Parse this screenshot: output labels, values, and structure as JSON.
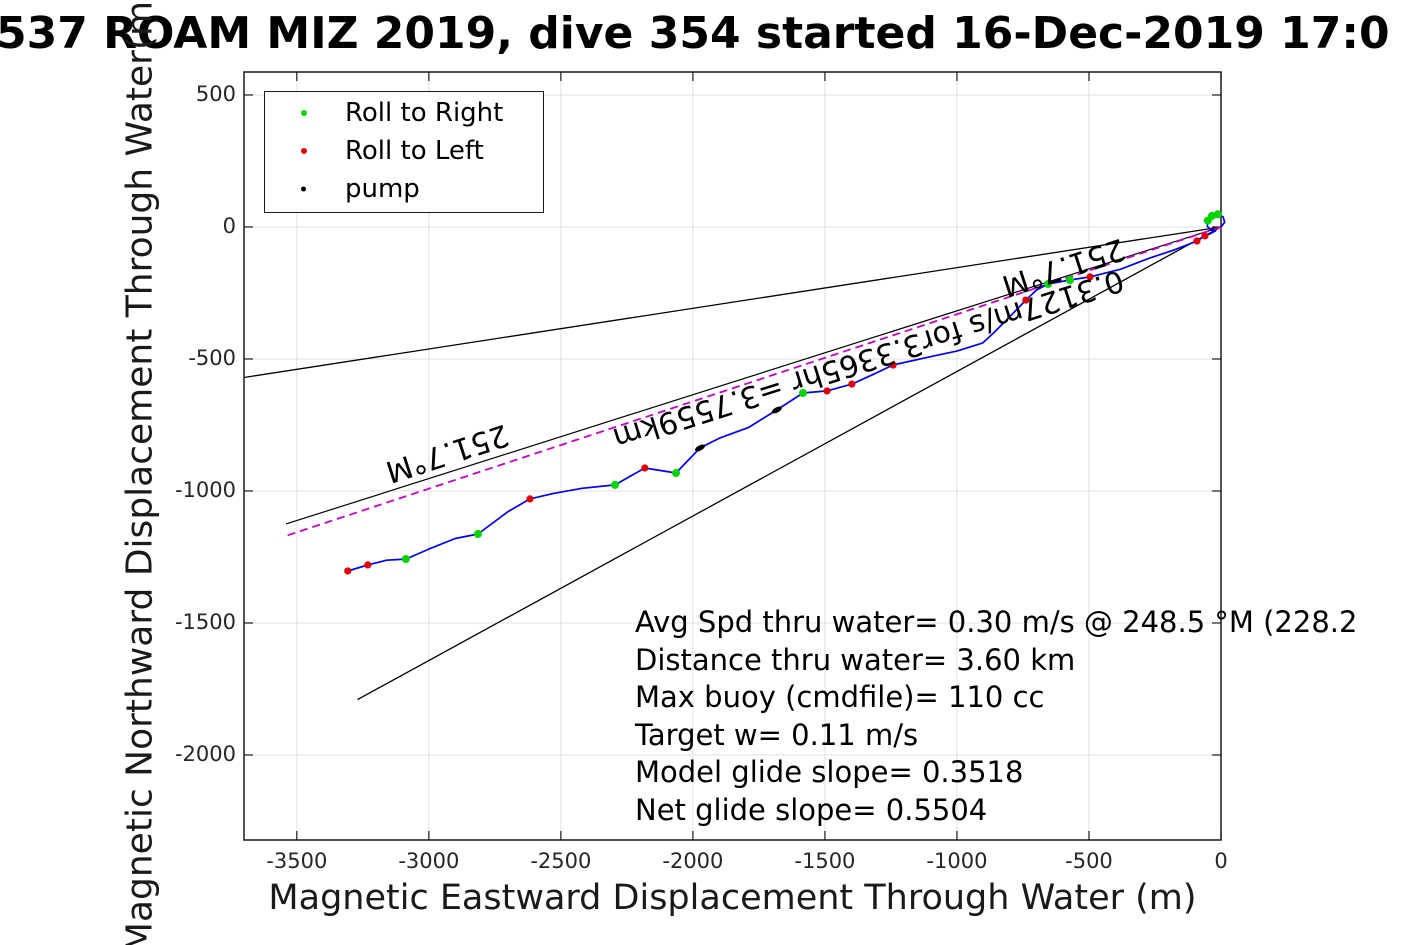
{
  "title": "537 ROAM MIZ 2019, dive 354 started 16-Dec-2019 17:0",
  "axis": {
    "xlabel": "Magnetic Eastward Displacement Through Water (m)",
    "ylabel": "Magnetic Northward Displacement Through Water(m)",
    "xticks": [
      -3500,
      -3000,
      -2500,
      -2000,
      -1500,
      -1000,
      -500,
      0
    ],
    "yticks": [
      500,
      0,
      -500,
      -1000,
      -1500,
      -2000
    ],
    "xlim": [
      -3700,
      0
    ],
    "ylim": [
      -2322,
      587
    ]
  },
  "legend": {
    "items": [
      {
        "label": "Roll to Right",
        "color": "#00d500",
        "dot": 6
      },
      {
        "label": "Roll to Left",
        "color": "#e00000",
        "dot": 6
      },
      {
        "label": "pump",
        "color": "#000000",
        "dot": 5
      }
    ]
  },
  "stats_lines": [
    "Avg Spd thru water=  0.30 m/s @ 248.5 °M (228.2",
    "Distance thru water=  3.60 km",
    "Max buoy (cmdfile)= 110 cc",
    "Target w= 0.11 m/s",
    "Model glide slope= 0.3518",
    "Net glide slope= 0.5504"
  ],
  "colors": {
    "track": "#0000f0",
    "bearing_line": "#c800c8",
    "corridor_line": "#000000",
    "roll_right": "#00d500",
    "roll_left": "#e00000",
    "pump": "#000000",
    "grid": "#e0e0e0",
    "axis_box": "#1a1a1a"
  },
  "chart_data": {
    "type": "line",
    "title": "537 ROAM MIZ 2019, dive 354 started 16-Dec-2019 17:0",
    "xlabel": "Magnetic Eastward Displacement Through Water (m)",
    "ylabel": "Magnetic Northward Displacement Through Water(m)",
    "xlim": [
      -3700,
      0
    ],
    "ylim": [
      -2322,
      587
    ],
    "grid": true,
    "legend_position": "northwest",
    "marker_meaning": {
      "g": "Roll to Right",
      "r": "Roll to Left",
      "p": "pump"
    },
    "trajectory": {
      "name": "dive-track-through-water",
      "color": "#0000f0",
      "points": [
        [
          0,
          0,
          ""
        ],
        [
          14,
          18,
          ""
        ],
        [
          8,
          38,
          ""
        ],
        [
          -12,
          48,
          "g"
        ],
        [
          -34,
          42,
          "g"
        ],
        [
          -50,
          24,
          "g"
        ],
        [
          -52,
          2,
          ""
        ],
        [
          -38,
          -12,
          ""
        ],
        [
          -20,
          -14,
          ""
        ],
        [
          -40,
          -25,
          ""
        ],
        [
          -61,
          -34,
          "r"
        ],
        [
          -91,
          -53,
          "r"
        ],
        [
          -180,
          -88,
          ""
        ],
        [
          -269,
          -117,
          ""
        ],
        [
          -380,
          -160,
          ""
        ],
        [
          -496,
          -189,
          "r"
        ],
        [
          -572,
          -201,
          "g"
        ],
        [
          -655,
          -216,
          "g"
        ],
        [
          -700,
          -240,
          ""
        ],
        [
          -739,
          -277,
          "r"
        ],
        [
          -800,
          -340,
          ""
        ],
        [
          -860,
          -400,
          ""
        ],
        [
          -902,
          -439,
          ""
        ],
        [
          -1000,
          -470,
          ""
        ],
        [
          -1090,
          -489,
          ""
        ],
        [
          -1242,
          -523,
          "r"
        ],
        [
          -1320,
          -560,
          ""
        ],
        [
          -1398,
          -595,
          "r"
        ],
        [
          -1492,
          -621,
          "r"
        ],
        [
          -1583,
          -629,
          "g"
        ],
        [
          -1682,
          -693,
          "p"
        ],
        [
          -1790,
          -760,
          ""
        ],
        [
          -1900,
          -800,
          ""
        ],
        [
          -1973,
          -837,
          "p"
        ],
        [
          -2064,
          -932,
          "g"
        ],
        [
          -2182,
          -913,
          "r"
        ],
        [
          -2295,
          -977,
          "g"
        ],
        [
          -2420,
          -990,
          ""
        ],
        [
          -2530,
          -1010,
          ""
        ],
        [
          -2617,
          -1030,
          "r"
        ],
        [
          -2700,
          -1078,
          ""
        ],
        [
          -2814,
          -1163,
          "g"
        ],
        [
          -2900,
          -1180,
          ""
        ],
        [
          -3000,
          -1220,
          ""
        ],
        [
          -3087,
          -1258,
          "g"
        ],
        [
          -3160,
          -1262,
          ""
        ],
        [
          -3231,
          -1280,
          "r"
        ],
        [
          -3307,
          -1303,
          "r"
        ]
      ]
    },
    "lines": [
      {
        "name": "course-corridor-upper",
        "style": "solid",
        "color": "#000000",
        "width": 1.3,
        "points": [
          [
            0,
            0
          ],
          [
            -3700,
            -570
          ]
        ]
      },
      {
        "name": "course-corridor-lower",
        "style": "solid",
        "color": "#000000",
        "width": 1.3,
        "points": [
          [
            0,
            0
          ],
          [
            -3270,
            -1790
          ]
        ]
      },
      {
        "name": "course-made-good",
        "style": "solid",
        "color": "#000000",
        "width": 1.2,
        "points": [
          [
            0,
            0
          ],
          [
            -3541,
            -1125
          ]
        ]
      },
      {
        "name": "desired-bearing-line",
        "style": "dashed",
        "color": "#c800c8",
        "width": 1.8,
        "points": [
          [
            0,
            0
          ],
          [
            -3541,
            -1170
          ]
        ]
      }
    ],
    "annotations": [
      {
        "name": "bearing-label-left",
        "text": "251.7°M",
        "x": -2932,
        "y": -852,
        "rot": 162,
        "size": 30
      },
      {
        "name": "bearing-label-right",
        "text": "251.7°M",
        "x": -598,
        "y": -148,
        "rot": 162,
        "size": 30
      },
      {
        "name": "speed-distance-label",
        "text": "0.3127m/s for3.3365hr =3.7559km",
        "x": -1337,
        "y": -496,
        "rot": 162.5,
        "size": 30
      }
    ]
  }
}
